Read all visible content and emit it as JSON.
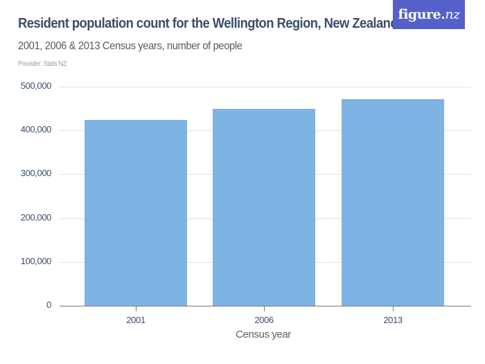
{
  "header": {
    "title": "Resident population count for the Wellington Region, New Zealand",
    "subtitle": "2001, 2006 & 2013 Census years, number of people",
    "provider": "Provider: Stats NZ",
    "logo": {
      "main": "figure.",
      "accent": "nz"
    },
    "logo_color": "#5561c9"
  },
  "chart_data": {
    "type": "bar",
    "title": "Resident population count for the Wellington Region, New Zealand",
    "subtitle": "2001, 2006 & 2013 Census years, number of people",
    "xlabel": "Census year",
    "ylabel": "",
    "categories": [
      "2001",
      "2006",
      "2013"
    ],
    "values": [
      423765,
      448956,
      471315
    ],
    "ylim": [
      0,
      500000
    ],
    "yticks": [
      0,
      100000,
      200000,
      300000,
      400000,
      500000
    ],
    "ytick_labels": [
      "0",
      "100,000",
      "200,000",
      "300,000",
      "400,000",
      "500,000"
    ],
    "grid": true,
    "legend": null,
    "bar_color": "#7eb4e3"
  }
}
